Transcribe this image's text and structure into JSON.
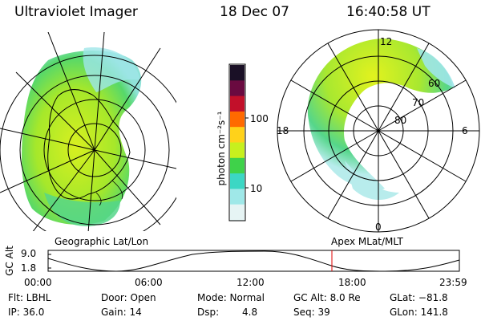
{
  "header": {
    "title": "Ultraviolet Imager",
    "date": "18 Dec 07",
    "time": "16:40:58 UT"
  },
  "left_map": {
    "label": "Geographic Lat/Lon"
  },
  "right_map": {
    "label": "Apex MLat/MLT",
    "mlt_labels": {
      "top": "12",
      "left": "18",
      "right": "6",
      "bottom": "0"
    },
    "lat_labels": [
      "60",
      "70",
      "80"
    ]
  },
  "colorbar": {
    "unit_label": "photon cm⁻²s⁻¹",
    "ticks": [
      "100",
      "10"
    ],
    "colors": [
      "#1a1026",
      "#6a0a40",
      "#c2102a",
      "#ff6a00",
      "#ffd21a",
      "#c7f01e",
      "#3fd24a",
      "#3cd7c4",
      "#9fe8e8",
      "#e6f4f4"
    ]
  },
  "alt_plot": {
    "ylabel": "GC Alt",
    "yticks": [
      "9.0",
      "1.8"
    ],
    "xticks": [
      "00:00",
      "06:00",
      "12:00",
      "18:00",
      "23:59"
    ],
    "current_time_marker": "16:40",
    "marker_color": "#e00000"
  },
  "info": {
    "flt": "Flt: LBHL",
    "ip": "IP: 36.0",
    "door": "Door: Open",
    "gain": "Gain: 14",
    "mode": "Mode: Normal",
    "dsp_label": "Dsp:",
    "dsp_value": "4.8",
    "gcalt": "GC Alt: 8.0 Re",
    "seq": "Seq: 39",
    "glat": "GLat: −81.8",
    "glon": "GLon: 141.8"
  }
}
